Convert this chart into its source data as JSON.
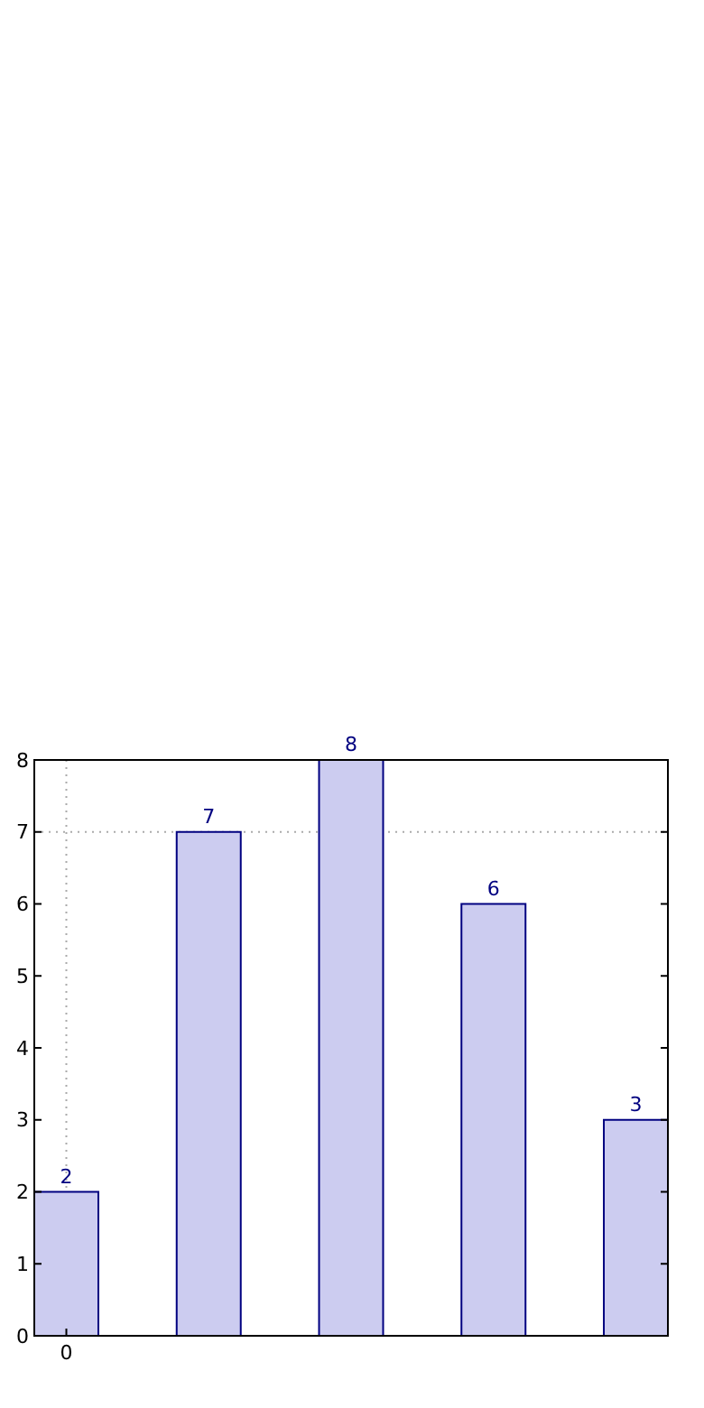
{
  "chart_data": {
    "type": "bar",
    "categories": [
      "0",
      null,
      null,
      null,
      null
    ],
    "values": [
      2,
      7,
      8,
      6,
      3
    ],
    "color": "#ccccf0",
    "ylim": [
      0,
      8
    ],
    "yticks": [
      0,
      1,
      2,
      3,
      4,
      5,
      6,
      7,
      8
    ],
    "grid": false,
    "data_labels": true,
    "ref_lines": [
      {
        "axis": "x",
        "value": "0",
        "color": "#aaaaaa",
        "line_style": "dotted"
      },
      {
        "axis": "y",
        "value": 7,
        "color": "#aaaaaa",
        "line_style": "dotted"
      }
    ]
  }
}
